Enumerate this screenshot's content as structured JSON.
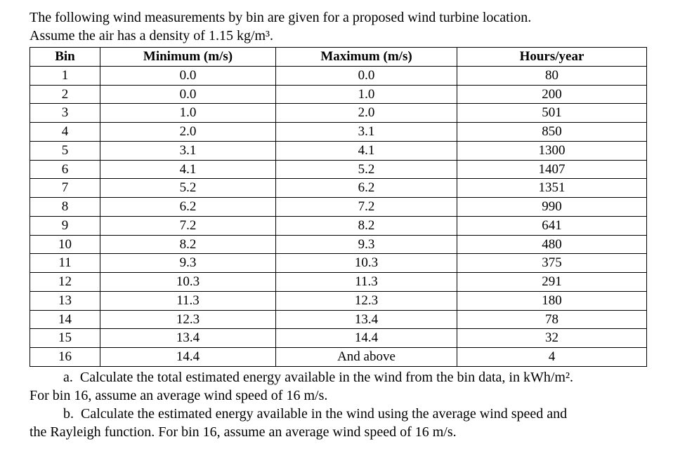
{
  "intro": {
    "line1": "The following wind measurements by bin are given for a proposed wind turbine location.",
    "line2": "Assume the air has a density of 1.15 kg/m³."
  },
  "table": {
    "headers": [
      "Bin",
      "Minimum (m/s)",
      "Maximum (m/s)",
      "Hours/year"
    ],
    "rows": [
      [
        "1",
        "0.0",
        "0.0",
        "80"
      ],
      [
        "2",
        "0.0",
        "1.0",
        "200"
      ],
      [
        "3",
        "1.0",
        "2.0",
        "501"
      ],
      [
        "4",
        "2.0",
        "3.1",
        "850"
      ],
      [
        "5",
        "3.1",
        "4.1",
        "1300"
      ],
      [
        "6",
        "4.1",
        "5.2",
        "1407"
      ],
      [
        "7",
        "5.2",
        "6.2",
        "1351"
      ],
      [
        "8",
        "6.2",
        "7.2",
        "990"
      ],
      [
        "9",
        "7.2",
        "8.2",
        "641"
      ],
      [
        "10",
        "8.2",
        "9.3",
        "480"
      ],
      [
        "11",
        "9.3",
        "10.3",
        "375"
      ],
      [
        "12",
        "10.3",
        "11.3",
        "291"
      ],
      [
        "13",
        "11.3",
        "12.3",
        "180"
      ],
      [
        "14",
        "12.3",
        "13.4",
        "78"
      ],
      [
        "15",
        "13.4",
        "14.4",
        "32"
      ],
      [
        "16",
        "14.4",
        "And above",
        "4"
      ]
    ]
  },
  "questions": {
    "part_a_line1": "a.  Calculate the total estimated energy available in the wind from the bin data, in kWh/m².",
    "part_a_line2": "For bin 16, assume an average wind speed of 16 m/s.",
    "part_b_line1": "b.  Calculate the estimated energy available in the wind using the average wind speed and",
    "part_b_line2": "the Rayleigh function. For bin 16, assume an average wind speed of 16 m/s."
  }
}
